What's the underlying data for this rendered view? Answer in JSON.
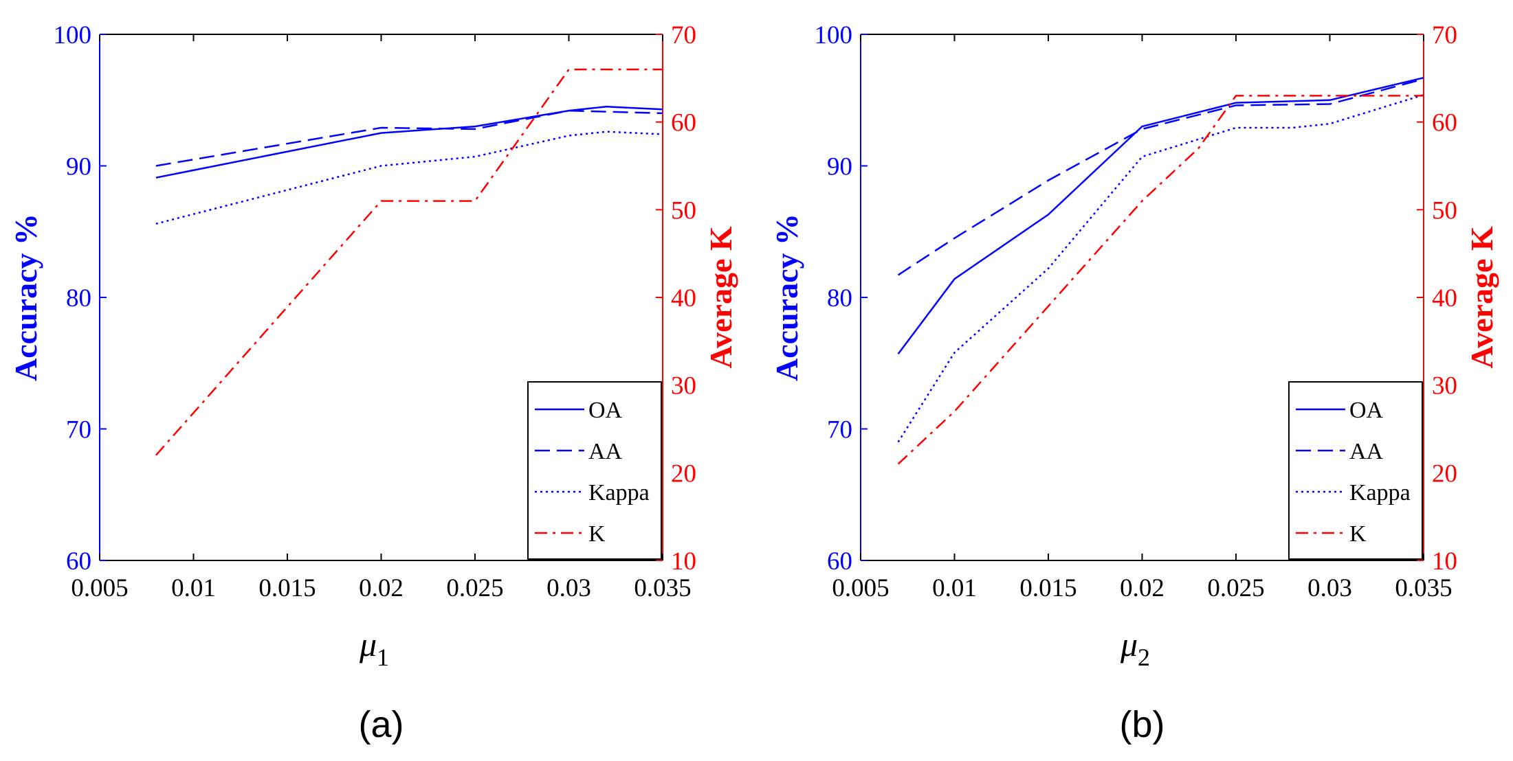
{
  "colors": {
    "left_axis": "#0000ff",
    "right_axis": "#ff0000",
    "frame": "#000000"
  },
  "chart_data": [
    {
      "type": "line",
      "caption": "(a)",
      "xlabel_symbol": "μ",
      "xlabel_subscript": "1",
      "ylabel_left": "Accuracy %",
      "ylabel_right": "Average K",
      "xlim": [
        0.005,
        0.035
      ],
      "ylim_left": [
        60,
        100
      ],
      "ylim_right": [
        10,
        70
      ],
      "xticks": [
        "0.005",
        "0.01",
        "0.015",
        "0.02",
        "0.025",
        "0.03",
        "0.035"
      ],
      "yticks_left": [
        "60",
        "70",
        "80",
        "90",
        "100"
      ],
      "yticks_right": [
        "10",
        "20",
        "30",
        "40",
        "50",
        "60",
        "70"
      ],
      "legend": [
        "OA",
        "AA",
        "Kappa",
        "K"
      ],
      "series": [
        {
          "name": "OA",
          "axis": "left",
          "style": "solid",
          "color": "#0000ff",
          "x": [
            0.008,
            0.02,
            0.025,
            0.03,
            0.032,
            0.035
          ],
          "y": [
            89.1,
            92.5,
            93.0,
            94.2,
            94.5,
            94.3
          ]
        },
        {
          "name": "AA",
          "axis": "left",
          "style": "dashed",
          "color": "#0000ff",
          "x": [
            0.008,
            0.02,
            0.025,
            0.03,
            0.035
          ],
          "y": [
            90.0,
            92.9,
            92.8,
            94.2,
            94.0
          ]
        },
        {
          "name": "Kappa",
          "axis": "left",
          "style": "dotted",
          "color": "#0000ff",
          "x": [
            0.008,
            0.02,
            0.025,
            0.03,
            0.032,
            0.035
          ],
          "y": [
            85.6,
            90.0,
            90.7,
            92.3,
            92.6,
            92.4
          ]
        },
        {
          "name": "K",
          "axis": "right",
          "style": "dashdot",
          "color": "#ff0000",
          "x": [
            0.008,
            0.02,
            0.025,
            0.03,
            0.035
          ],
          "y": [
            22,
            51,
            51,
            66,
            66
          ]
        }
      ]
    },
    {
      "type": "line",
      "caption": "(b)",
      "xlabel_symbol": "μ",
      "xlabel_subscript": "2",
      "ylabel_left": "Accuracy %",
      "ylabel_right": "Average K",
      "xlim": [
        0.005,
        0.035
      ],
      "ylim_left": [
        60,
        100
      ],
      "ylim_right": [
        10,
        70
      ],
      "xticks": [
        "0.005",
        "0.01",
        "0.015",
        "0.02",
        "0.025",
        "0.03",
        "0.035"
      ],
      "yticks_left": [
        "60",
        "70",
        "80",
        "90",
        "100"
      ],
      "yticks_right": [
        "10",
        "20",
        "30",
        "40",
        "50",
        "60",
        "70"
      ],
      "legend": [
        "OA",
        "AA",
        "Kappa",
        "K"
      ],
      "series": [
        {
          "name": "OA",
          "axis": "left",
          "style": "solid",
          "color": "#0000ff",
          "x": [
            0.007,
            0.01,
            0.015,
            0.02,
            0.025,
            0.03,
            0.035
          ],
          "y": [
            75.7,
            81.4,
            86.3,
            93.0,
            94.8,
            95.0,
            96.7
          ]
        },
        {
          "name": "AA",
          "axis": "left",
          "style": "dashed",
          "color": "#0000ff",
          "x": [
            0.007,
            0.01,
            0.015,
            0.02,
            0.025,
            0.03,
            0.035
          ],
          "y": [
            81.7,
            84.5,
            88.9,
            92.8,
            94.6,
            94.7,
            96.6
          ]
        },
        {
          "name": "Kappa",
          "axis": "left",
          "style": "dotted",
          "color": "#0000ff",
          "x": [
            0.007,
            0.01,
            0.015,
            0.02,
            0.025,
            0.028,
            0.03,
            0.035
          ],
          "y": [
            69.0,
            75.8,
            82.2,
            90.7,
            92.9,
            92.9,
            93.2,
            95.4
          ]
        },
        {
          "name": "K",
          "axis": "right",
          "style": "dashdot",
          "color": "#ff0000",
          "x": [
            0.007,
            0.01,
            0.015,
            0.02,
            0.023,
            0.025,
            0.03,
            0.035
          ],
          "y": [
            21,
            27,
            39,
            51,
            57,
            63,
            63,
            63
          ]
        }
      ]
    }
  ]
}
